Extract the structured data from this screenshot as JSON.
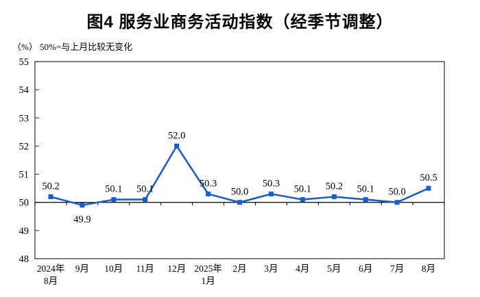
{
  "title": "图4 服务业商务活动指数（经季节调整）",
  "unit_label": "（%）",
  "baseline_note": "50%=与上月比较无变化",
  "chart_data": {
    "type": "line",
    "title": "图4 服务业商务活动指数（经季节调整）",
    "subtitle": "（%） 50%=与上月比较无变化",
    "categories": [
      "2024年\n8月",
      "9月",
      "10月",
      "11月",
      "12月",
      "2025年\n1月",
      "2月",
      "3月",
      "4月",
      "5月",
      "6月",
      "7月",
      "8月"
    ],
    "values": [
      50.2,
      49.9,
      50.1,
      50.1,
      52.0,
      50.3,
      50.0,
      50.3,
      50.1,
      50.2,
      50.1,
      50.0,
      50.5
    ],
    "data_labels": [
      "50.2",
      "49.9",
      "50.1",
      "50.1",
      "52.0",
      "50.3",
      "50.0",
      "50.3",
      "50.1",
      "50.2",
      "50.1",
      "50.0",
      "50.5"
    ],
    "labels_below_indices": [
      1
    ],
    "xlabel": "",
    "ylabel": "（%）",
    "ylim": [
      48,
      55
    ],
    "yticks": [
      48,
      49,
      50,
      51,
      52,
      53,
      54,
      55
    ],
    "baseline": 50,
    "grid": false,
    "legend": "none",
    "marker": "square",
    "line_color": "#1B5EC4",
    "axis_color": "#000000",
    "frame_color": "#3b3b3b"
  }
}
